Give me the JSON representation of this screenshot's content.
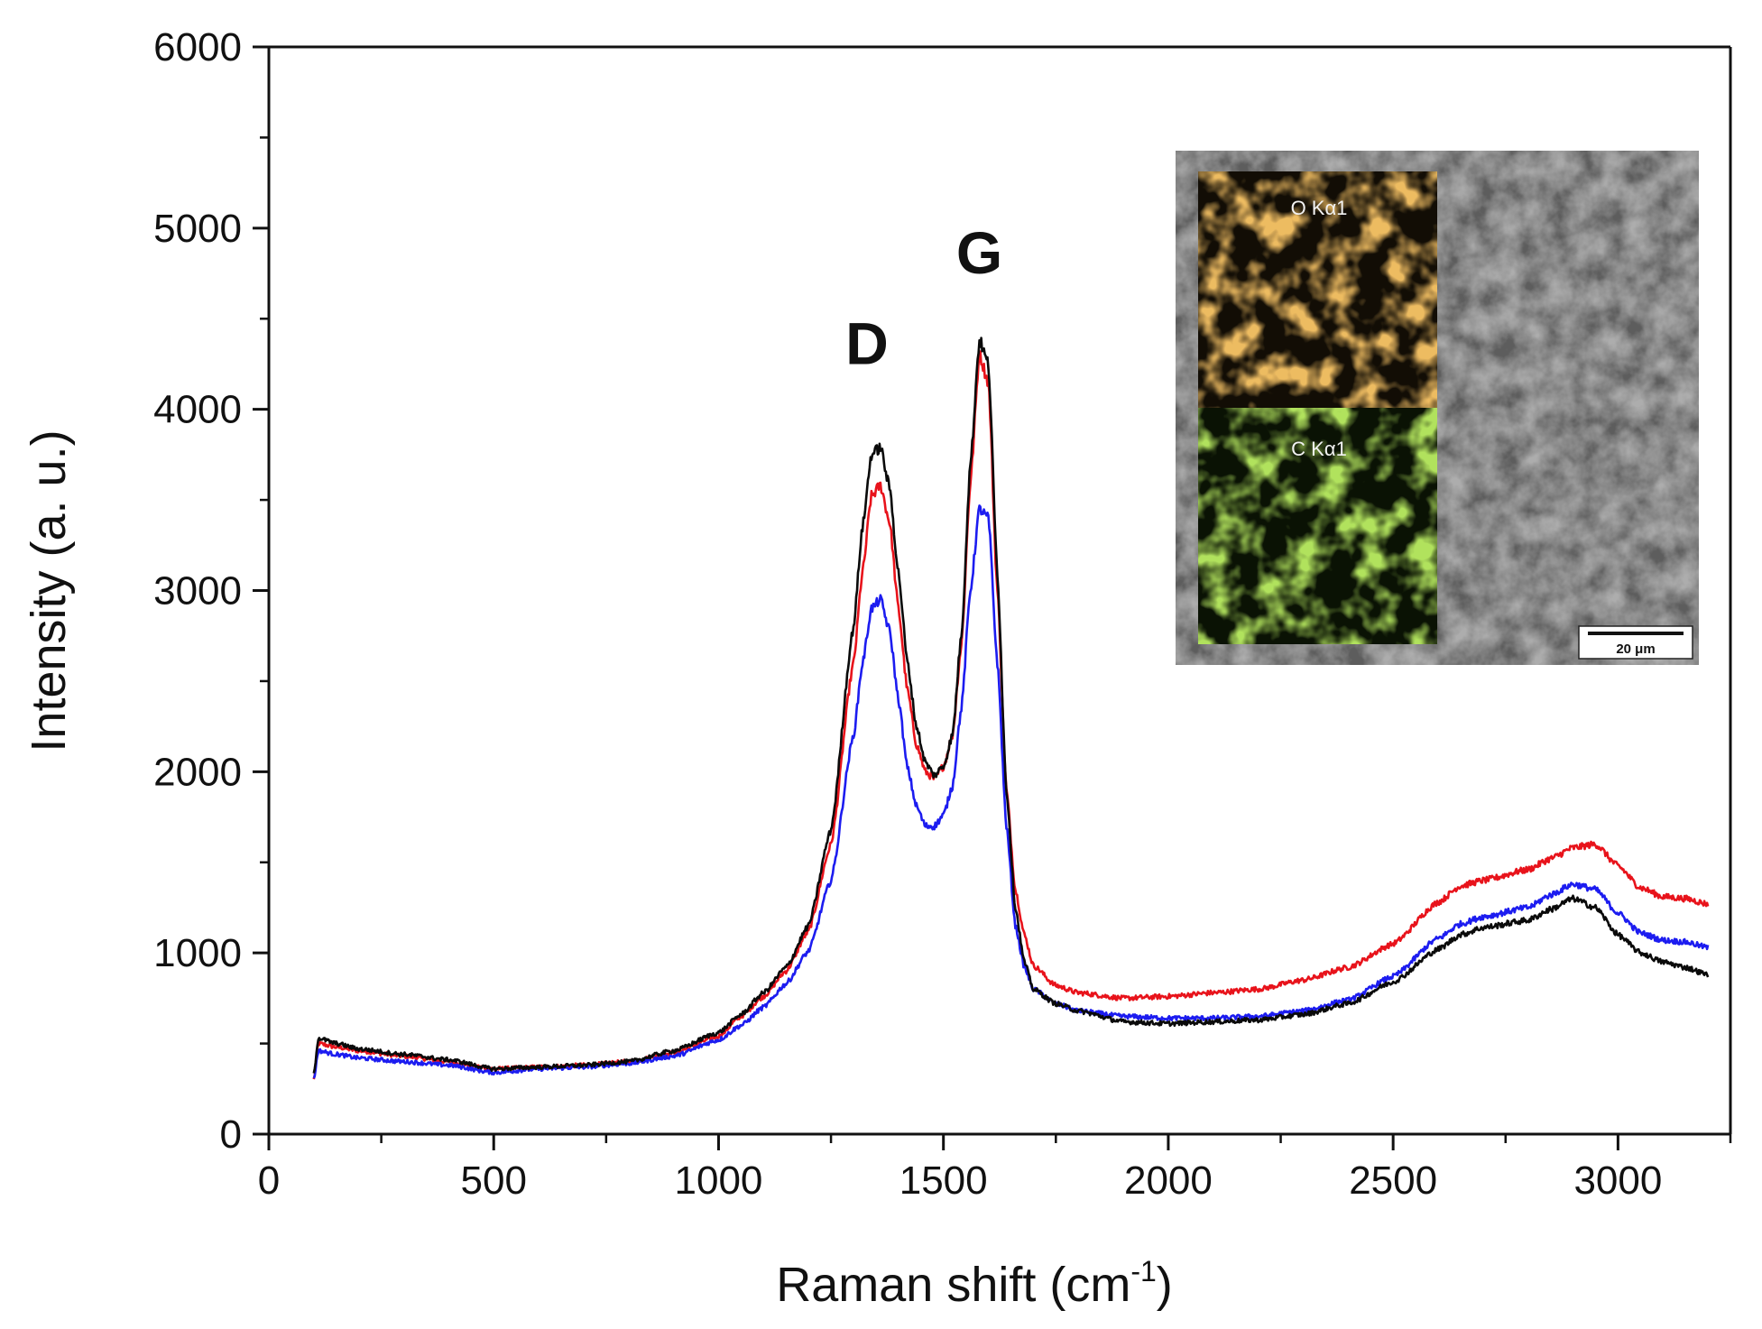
{
  "chart_data": {
    "type": "line",
    "title": "",
    "xlabel": "Raman shift (cm",
    "xlabel_superscript": "-1",
    "xlabel_suffix": ")",
    "ylabel": "Intensity (a. u.)",
    "xlim": [
      0,
      3250
    ],
    "ylim": [
      0,
      6000
    ],
    "x_ticks": [
      0,
      500,
      1000,
      1500,
      2000,
      2500,
      3000
    ],
    "x_tick_labels": [
      "0",
      "500",
      "1000",
      "1500",
      "2000",
      "2500",
      "3000"
    ],
    "y_ticks": [
      0,
      1000,
      2000,
      3000,
      4000,
      5000,
      6000
    ],
    "y_tick_labels": [
      "0",
      "1000",
      "2000",
      "3000",
      "4000",
      "5000",
      "6000"
    ],
    "grid": false,
    "annotations": [
      {
        "text": "D",
        "x": 1330,
        "y": 4250
      },
      {
        "text": "G",
        "x": 1580,
        "y": 4750
      }
    ],
    "series": [
      {
        "name": "red",
        "color": "#e8131b",
        "x": [
          100,
          110,
          150,
          200,
          300,
          400,
          500,
          600,
          700,
          800,
          900,
          1000,
          1050,
          1100,
          1150,
          1200,
          1250,
          1300,
          1320,
          1340,
          1360,
          1380,
          1400,
          1420,
          1440,
          1460,
          1480,
          1500,
          1520,
          1540,
          1560,
          1580,
          1600,
          1620,
          1640,
          1660,
          1680,
          1700,
          1750,
          1800,
          1900,
          2000,
          2100,
          2200,
          2300,
          2400,
          2500,
          2600,
          2650,
          2700,
          2800,
          2850,
          2900,
          2950,
          3000,
          3050,
          3100,
          3150,
          3200
        ],
        "y": [
          300,
          500,
          480,
          460,
          430,
          400,
          360,
          370,
          380,
          400,
          450,
          540,
          650,
          760,
          900,
          1120,
          1600,
          2600,
          3100,
          3520,
          3580,
          3380,
          2900,
          2450,
          2150,
          2000,
          1960,
          2030,
          2200,
          2700,
          3600,
          4300,
          4150,
          3000,
          1900,
          1350,
          1100,
          930,
          820,
          780,
          750,
          760,
          780,
          800,
          850,
          920,
          1050,
          1280,
          1370,
          1400,
          1460,
          1520,
          1580,
          1600,
          1480,
          1360,
          1310,
          1300,
          1270
        ]
      },
      {
        "name": "blue",
        "color": "#1c1cf0",
        "x": [
          100,
          110,
          150,
          200,
          300,
          400,
          500,
          600,
          700,
          800,
          900,
          1000,
          1050,
          1100,
          1150,
          1200,
          1250,
          1300,
          1320,
          1340,
          1360,
          1380,
          1400,
          1420,
          1440,
          1460,
          1480,
          1500,
          1520,
          1540,
          1560,
          1580,
          1600,
          1620,
          1640,
          1660,
          1680,
          1700,
          1750,
          1800,
          1900,
          2000,
          2100,
          2200,
          2300,
          2400,
          2500,
          2600,
          2650,
          2700,
          2800,
          2850,
          2900,
          2950,
          3000,
          3050,
          3100,
          3150,
          3200
        ],
        "y": [
          300,
          460,
          440,
          420,
          400,
          380,
          340,
          360,
          370,
          390,
          430,
          520,
          600,
          700,
          830,
          1010,
          1400,
          2200,
          2600,
          2900,
          2950,
          2780,
          2400,
          2020,
          1810,
          1700,
          1700,
          1760,
          1920,
          2350,
          3000,
          3450,
          3400,
          2600,
          1700,
          1150,
          920,
          800,
          720,
          680,
          650,
          640,
          640,
          650,
          680,
          740,
          870,
          1080,
          1160,
          1200,
          1250,
          1320,
          1380,
          1350,
          1220,
          1110,
          1070,
          1060,
          1030
        ]
      },
      {
        "name": "black",
        "color": "#0a0a0a",
        "x": [
          100,
          110,
          150,
          200,
          300,
          400,
          500,
          600,
          700,
          800,
          900,
          1000,
          1050,
          1100,
          1150,
          1200,
          1250,
          1300,
          1320,
          1340,
          1360,
          1380,
          1400,
          1420,
          1440,
          1460,
          1480,
          1500,
          1520,
          1540,
          1560,
          1580,
          1600,
          1620,
          1640,
          1660,
          1680,
          1700,
          1750,
          1800,
          1900,
          2000,
          2100,
          2200,
          2300,
          2400,
          2500,
          2600,
          2650,
          2700,
          2800,
          2850,
          2900,
          2950,
          3000,
          3050,
          3100,
          3150,
          3200
        ],
        "y": [
          330,
          530,
          500,
          470,
          440,
          410,
          360,
          370,
          380,
          400,
          460,
          560,
          660,
          780,
          920,
          1150,
          1680,
          2800,
          3350,
          3750,
          3790,
          3570,
          3100,
          2600,
          2250,
          2050,
          1980,
          2030,
          2200,
          2750,
          3700,
          4380,
          4250,
          3100,
          1900,
          1250,
          950,
          800,
          720,
          680,
          620,
          610,
          620,
          630,
          660,
          720,
          840,
          1020,
          1100,
          1140,
          1180,
          1240,
          1300,
          1250,
          1100,
          1000,
          950,
          920,
          880
        ]
      }
    ]
  },
  "inset": {
    "o_map_label": "O Kα1",
    "c_map_label": "C Kα1",
    "scale_bar_label": "20 μm",
    "o_map_color": "#d9801e",
    "c_map_color": "#6fbf1c",
    "sem_color": "#6e6e6e"
  }
}
